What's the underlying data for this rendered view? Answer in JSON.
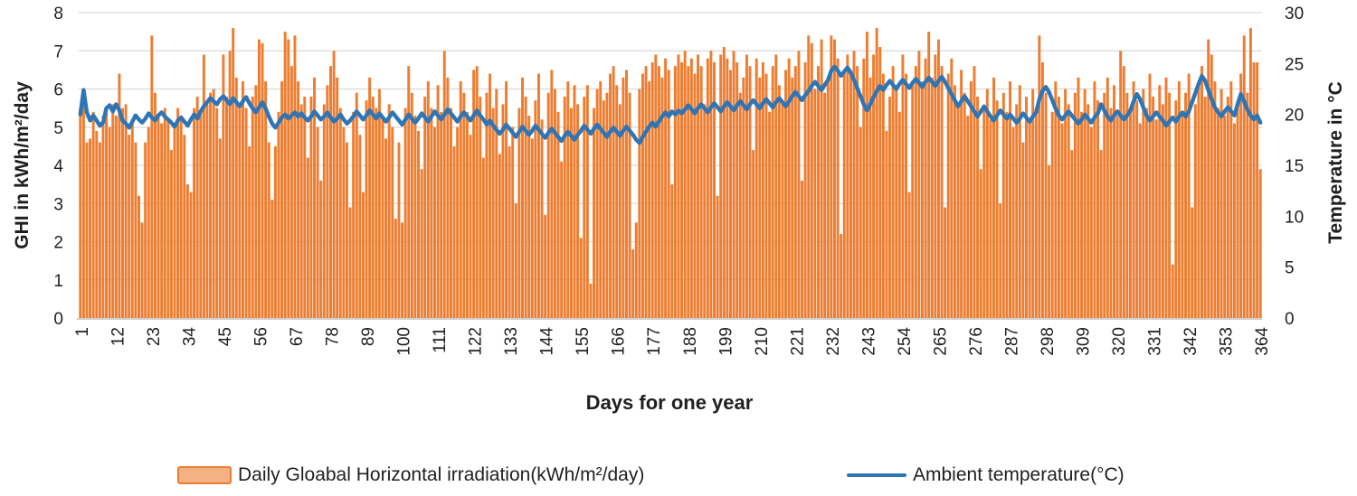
{
  "chart_data": {
    "type": "combo",
    "subtype": [
      "bar",
      "line"
    ],
    "xlabel": "Days for one year",
    "ylabel_left": "GHI in kWh/m²/day",
    "ylabel_right": "Temperature in °C",
    "x_tick_labels": [
      "1",
      "12",
      "23",
      "34",
      "45",
      "56",
      "67",
      "78",
      "89",
      "100",
      "111",
      "122",
      "133",
      "144",
      "155",
      "166",
      "177",
      "188",
      "199",
      "210",
      "221",
      "232",
      "243",
      "254",
      "265",
      "276",
      "287",
      "298",
      "309",
      "320",
      "331",
      "342",
      "353",
      "364"
    ],
    "x_tick_step": 11,
    "n_points": 364,
    "y_left_axis": {
      "min": 0,
      "max": 8,
      "ticks": [
        0,
        1,
        2,
        3,
        4,
        5,
        6,
        7,
        8
      ]
    },
    "y_right_axis": {
      "min": 0,
      "max": 30,
      "ticks": [
        0,
        5,
        10,
        15,
        20,
        25,
        30
      ]
    },
    "grid": true,
    "legend_position": "bottom",
    "legend": [
      "Daily Gloabal Horizontal irradiation(kWh/m²/day)",
      "Ambient temperature(°C)"
    ],
    "colors": {
      "bar": "#ED7D31",
      "bar_legend_fill": "#F4B183",
      "line": "#2E75B6",
      "grid": "#D9D9D9",
      "axis_line": "#BFBFBF",
      "text": "#1f1f1f"
    },
    "series": [
      {
        "name": "Daily Gloabal Horizontal irradiation(kWh/m²/day)",
        "type": "bar",
        "axis": "left",
        "values": [
          5.5,
          5.9,
          4.6,
          4.7,
          5.4,
          4.9,
          4.6,
          5.3,
          5.5,
          5.0,
          5.6,
          5.3,
          6.4,
          5.5,
          5.6,
          4.8,
          5.2,
          4.6,
          3.2,
          2.5,
          4.6,
          5.0,
          7.4,
          5.9,
          5.3,
          5.1,
          5.5,
          5.2,
          4.4,
          5.0,
          5.5,
          5.3,
          4.8,
          3.5,
          3.3,
          5.5,
          5.8,
          5.4,
          6.9,
          5.6,
          5.9,
          6.0,
          5.5,
          4.7,
          6.9,
          5.8,
          7.0,
          7.6,
          6.3,
          5.6,
          6.2,
          5.5,
          4.5,
          5.8,
          6.1,
          7.3,
          7.2,
          6.2,
          4.6,
          3.1,
          4.5,
          5.4,
          6.2,
          7.5,
          7.3,
          6.6,
          7.4,
          6.2,
          5.6,
          5.8,
          4.2,
          5.8,
          6.3,
          5.0,
          3.6,
          5.6,
          6.1,
          6.6,
          7.0,
          6.3,
          5.5,
          5.0,
          4.6,
          2.9,
          5.4,
          5.9,
          4.8,
          3.3,
          5.7,
          6.3,
          5.8,
          5.5,
          6.0,
          5.3,
          4.7,
          5.6,
          5.0,
          2.6,
          4.6,
          2.5,
          5.5,
          6.6,
          5.9,
          5.3,
          4.9,
          3.9,
          5.8,
          6.2,
          5.5,
          5.0,
          6.1,
          5.4,
          7.0,
          6.3,
          5.5,
          4.5,
          5.0,
          6.2,
          5.9,
          5.4,
          4.8,
          6.5,
          6.6,
          5.8,
          4.2,
          5.9,
          6.4,
          5.5,
          6.0,
          4.3,
          5.6,
          6.2,
          4.5,
          5.0,
          3.0,
          5.5,
          6.3,
          5.8,
          5.3,
          4.7,
          5.7,
          6.4,
          5.2,
          2.7,
          5.9,
          6.5,
          6.0,
          5.4,
          4.1,
          5.8,
          6.2,
          5.5,
          6.1,
          5.6,
          2.1,
          5.8,
          6.1,
          0.9,
          5.5,
          6.0,
          6.2,
          5.7,
          5.9,
          6.4,
          6.6,
          6.1,
          5.6,
          6.3,
          6.5,
          5.9,
          1.8,
          2.5,
          6.0,
          6.4,
          6.6,
          6.2,
          6.7,
          6.9,
          6.6,
          6.3,
          6.8,
          6.5,
          3.5,
          6.6,
          6.9,
          6.7,
          7.0,
          6.6,
          6.8,
          6.4,
          6.9,
          6.6,
          5.6,
          6.8,
          7.0,
          6.7,
          3.2,
          6.9,
          7.1,
          6.8,
          6.5,
          7.0,
          6.7,
          5.9,
          6.3,
          6.9,
          6.6,
          4.4,
          6.8,
          6.3,
          6.7,
          6.4,
          5.4,
          6.6,
          6.9,
          6.1,
          5.7,
          6.5,
          6.8,
          6.3,
          6.6,
          7.0,
          3.6,
          6.7,
          7.4,
          7.2,
          6.0,
          6.6,
          7.3,
          5.9,
          6.2,
          7.4,
          7.3,
          6.8,
          2.2,
          6.4,
          6.9,
          6.5,
          7.0,
          6.6,
          5.0,
          6.8,
          7.5,
          6.3,
          6.9,
          7.6,
          7.1,
          6.4,
          4.9,
          5.8,
          6.6,
          6.1,
          5.4,
          6.9,
          6.4,
          3.3,
          6.1,
          6.6,
          7.0,
          6.2,
          6.8,
          7.5,
          6.3,
          6.9,
          7.3,
          6.6,
          2.9,
          6.4,
          6.8,
          6.1,
          5.6,
          6.5,
          5.9,
          5.3,
          6.2,
          6.6,
          5.8,
          3.9,
          5.5,
          6.0,
          5.2,
          6.3,
          5.7,
          3.0,
          5.9,
          5.4,
          6.2,
          5.0,
          5.6,
          6.1,
          4.6,
          5.8,
          5.2,
          6.0,
          5.5,
          7.4,
          6.7,
          5.9,
          4.0,
          5.4,
          6.2,
          5.8,
          5.1,
          6.0,
          5.6,
          4.4,
          5.9,
          6.3,
          5.4,
          6.0,
          5.6,
          5.0,
          6.2,
          5.7,
          4.4,
          5.9,
          6.3,
          5.5,
          6.1,
          5.3,
          7.0,
          6.6,
          5.9,
          5.4,
          6.2,
          5.7,
          5.1,
          6.0,
          5.5,
          6.4,
          5.8,
          5.2,
          6.1,
          5.6,
          6.3,
          5.9,
          1.4,
          5.7,
          6.2,
          5.4,
          5.9,
          6.4,
          2.9,
          5.6,
          6.1,
          6.6,
          5.8,
          7.3,
          6.9,
          6.2,
          5.5,
          6.0,
          5.3,
          5.8,
          6.2,
          5.1,
          5.7,
          6.4,
          7.4,
          5.9,
          7.6,
          6.7,
          6.7,
          3.9
        ]
      },
      {
        "name": "Ambient temperature(°C)",
        "type": "line",
        "axis": "right",
        "values": [
          20.0,
          22.4,
          20.2,
          19.4,
          19.9,
          19.4,
          18.9,
          19.2,
          20.6,
          20.9,
          20.3,
          21.0,
          20.4,
          19.4,
          19.1,
          18.7,
          19.3,
          19.9,
          19.5,
          19.2,
          19.6,
          20.1,
          19.7,
          19.4,
          19.9,
          20.2,
          19.8,
          19.5,
          19.2,
          18.8,
          19.4,
          19.7,
          19.3,
          18.9,
          19.5,
          20.0,
          19.6,
          20.3,
          20.8,
          21.2,
          21.6,
          21.3,
          21.0,
          21.5,
          21.8,
          21.4,
          21.0,
          21.6,
          21.2,
          20.8,
          21.3,
          21.7,
          21.1,
          20.6,
          20.2,
          20.7,
          21.2,
          20.6,
          19.8,
          19.1,
          18.7,
          19.2,
          19.7,
          20.0,
          19.6,
          19.9,
          20.2,
          19.8,
          20.1,
          19.7,
          19.4,
          19.8,
          20.3,
          19.9,
          19.5,
          19.8,
          20.2,
          19.7,
          19.3,
          19.6,
          20.0,
          19.5,
          19.1,
          19.4,
          19.8,
          20.3,
          19.9,
          19.5,
          19.9,
          20.4,
          20.0,
          19.6,
          20.1,
          19.7,
          19.3,
          19.7,
          20.2,
          19.8,
          19.4,
          19.0,
          19.5,
          20.0,
          19.6,
          19.2,
          19.6,
          20.1,
          19.7,
          19.3,
          19.8,
          20.3,
          19.9,
          19.5,
          20.0,
          20.5,
          20.1,
          19.7,
          19.3,
          19.8,
          20.2,
          19.8,
          19.4,
          19.9,
          20.4,
          19.9,
          19.5,
          19.0,
          19.4,
          18.9,
          18.5,
          18.1,
          18.5,
          19.0,
          18.6,
          18.2,
          17.8,
          18.3,
          18.8,
          18.4,
          18.0,
          18.4,
          18.9,
          18.5,
          18.1,
          17.7,
          18.2,
          18.6,
          18.2,
          17.8,
          17.4,
          17.9,
          18.3,
          17.9,
          17.5,
          18.0,
          18.4,
          18.9,
          18.5,
          18.1,
          18.6,
          19.0,
          18.6,
          18.2,
          17.8,
          18.3,
          18.7,
          18.3,
          17.9,
          18.4,
          18.8,
          18.4,
          18.0,
          17.5,
          17.2,
          17.8,
          18.3,
          18.8,
          19.2,
          18.8,
          19.3,
          19.8,
          20.2,
          19.8,
          20.3,
          20.0,
          20.4,
          20.1,
          20.5,
          20.9,
          20.5,
          20.1,
          20.6,
          21.0,
          20.6,
          20.2,
          20.7,
          21.1,
          20.7,
          20.3,
          20.8,
          21.2,
          20.8,
          20.4,
          20.9,
          21.3,
          20.9,
          20.5,
          21.0,
          21.4,
          21.0,
          20.6,
          21.1,
          21.5,
          21.1,
          20.7,
          21.2,
          21.6,
          21.2,
          20.8,
          21.3,
          21.8,
          22.2,
          21.8,
          21.4,
          21.9,
          22.3,
          22.8,
          23.2,
          22.8,
          22.4,
          22.9,
          23.4,
          24.3,
          24.7,
          24.3,
          23.8,
          24.2,
          24.6,
          24.1,
          23.4,
          22.6,
          21.8,
          21.0,
          20.4,
          21.0,
          21.7,
          22.3,
          22.8,
          22.4,
          22.9,
          23.3,
          22.9,
          22.5,
          23.0,
          23.4,
          23.0,
          22.6,
          23.1,
          23.5,
          23.1,
          22.7,
          23.2,
          23.6,
          23.2,
          22.8,
          23.3,
          23.7,
          23.2,
          22.6,
          22.0,
          21.4,
          20.8,
          21.3,
          21.8,
          21.3,
          20.8,
          20.3,
          19.8,
          20.3,
          20.8,
          20.3,
          19.8,
          19.4,
          19.9,
          20.4,
          20.0,
          19.6,
          20.0,
          19.6,
          19.2,
          19.6,
          20.1,
          19.7,
          19.3,
          19.8,
          20.2,
          21.5,
          22.3,
          22.7,
          22.2,
          21.4,
          20.6,
          19.9,
          19.5,
          19.9,
          20.3,
          19.9,
          19.5,
          19.1,
          19.5,
          20.0,
          19.6,
          19.2,
          19.7,
          20.1,
          21.0,
          20.4,
          19.8,
          19.4,
          19.9,
          20.3,
          19.9,
          19.5,
          19.9,
          20.4,
          21.3,
          22.0,
          21.5,
          20.7,
          19.9,
          19.4,
          19.8,
          20.2,
          19.8,
          19.4,
          18.9,
          19.3,
          19.7,
          19.3,
          19.8,
          20.2,
          19.8,
          20.3,
          21.2,
          22.1,
          23.0,
          23.8,
          23.3,
          22.4,
          21.5,
          20.7,
          20.2,
          19.8,
          20.3,
          20.7,
          20.3,
          19.9,
          21.0,
          22.0,
          21.3,
          20.5,
          19.9,
          19.5,
          19.9,
          19.2
        ]
      }
    ]
  }
}
